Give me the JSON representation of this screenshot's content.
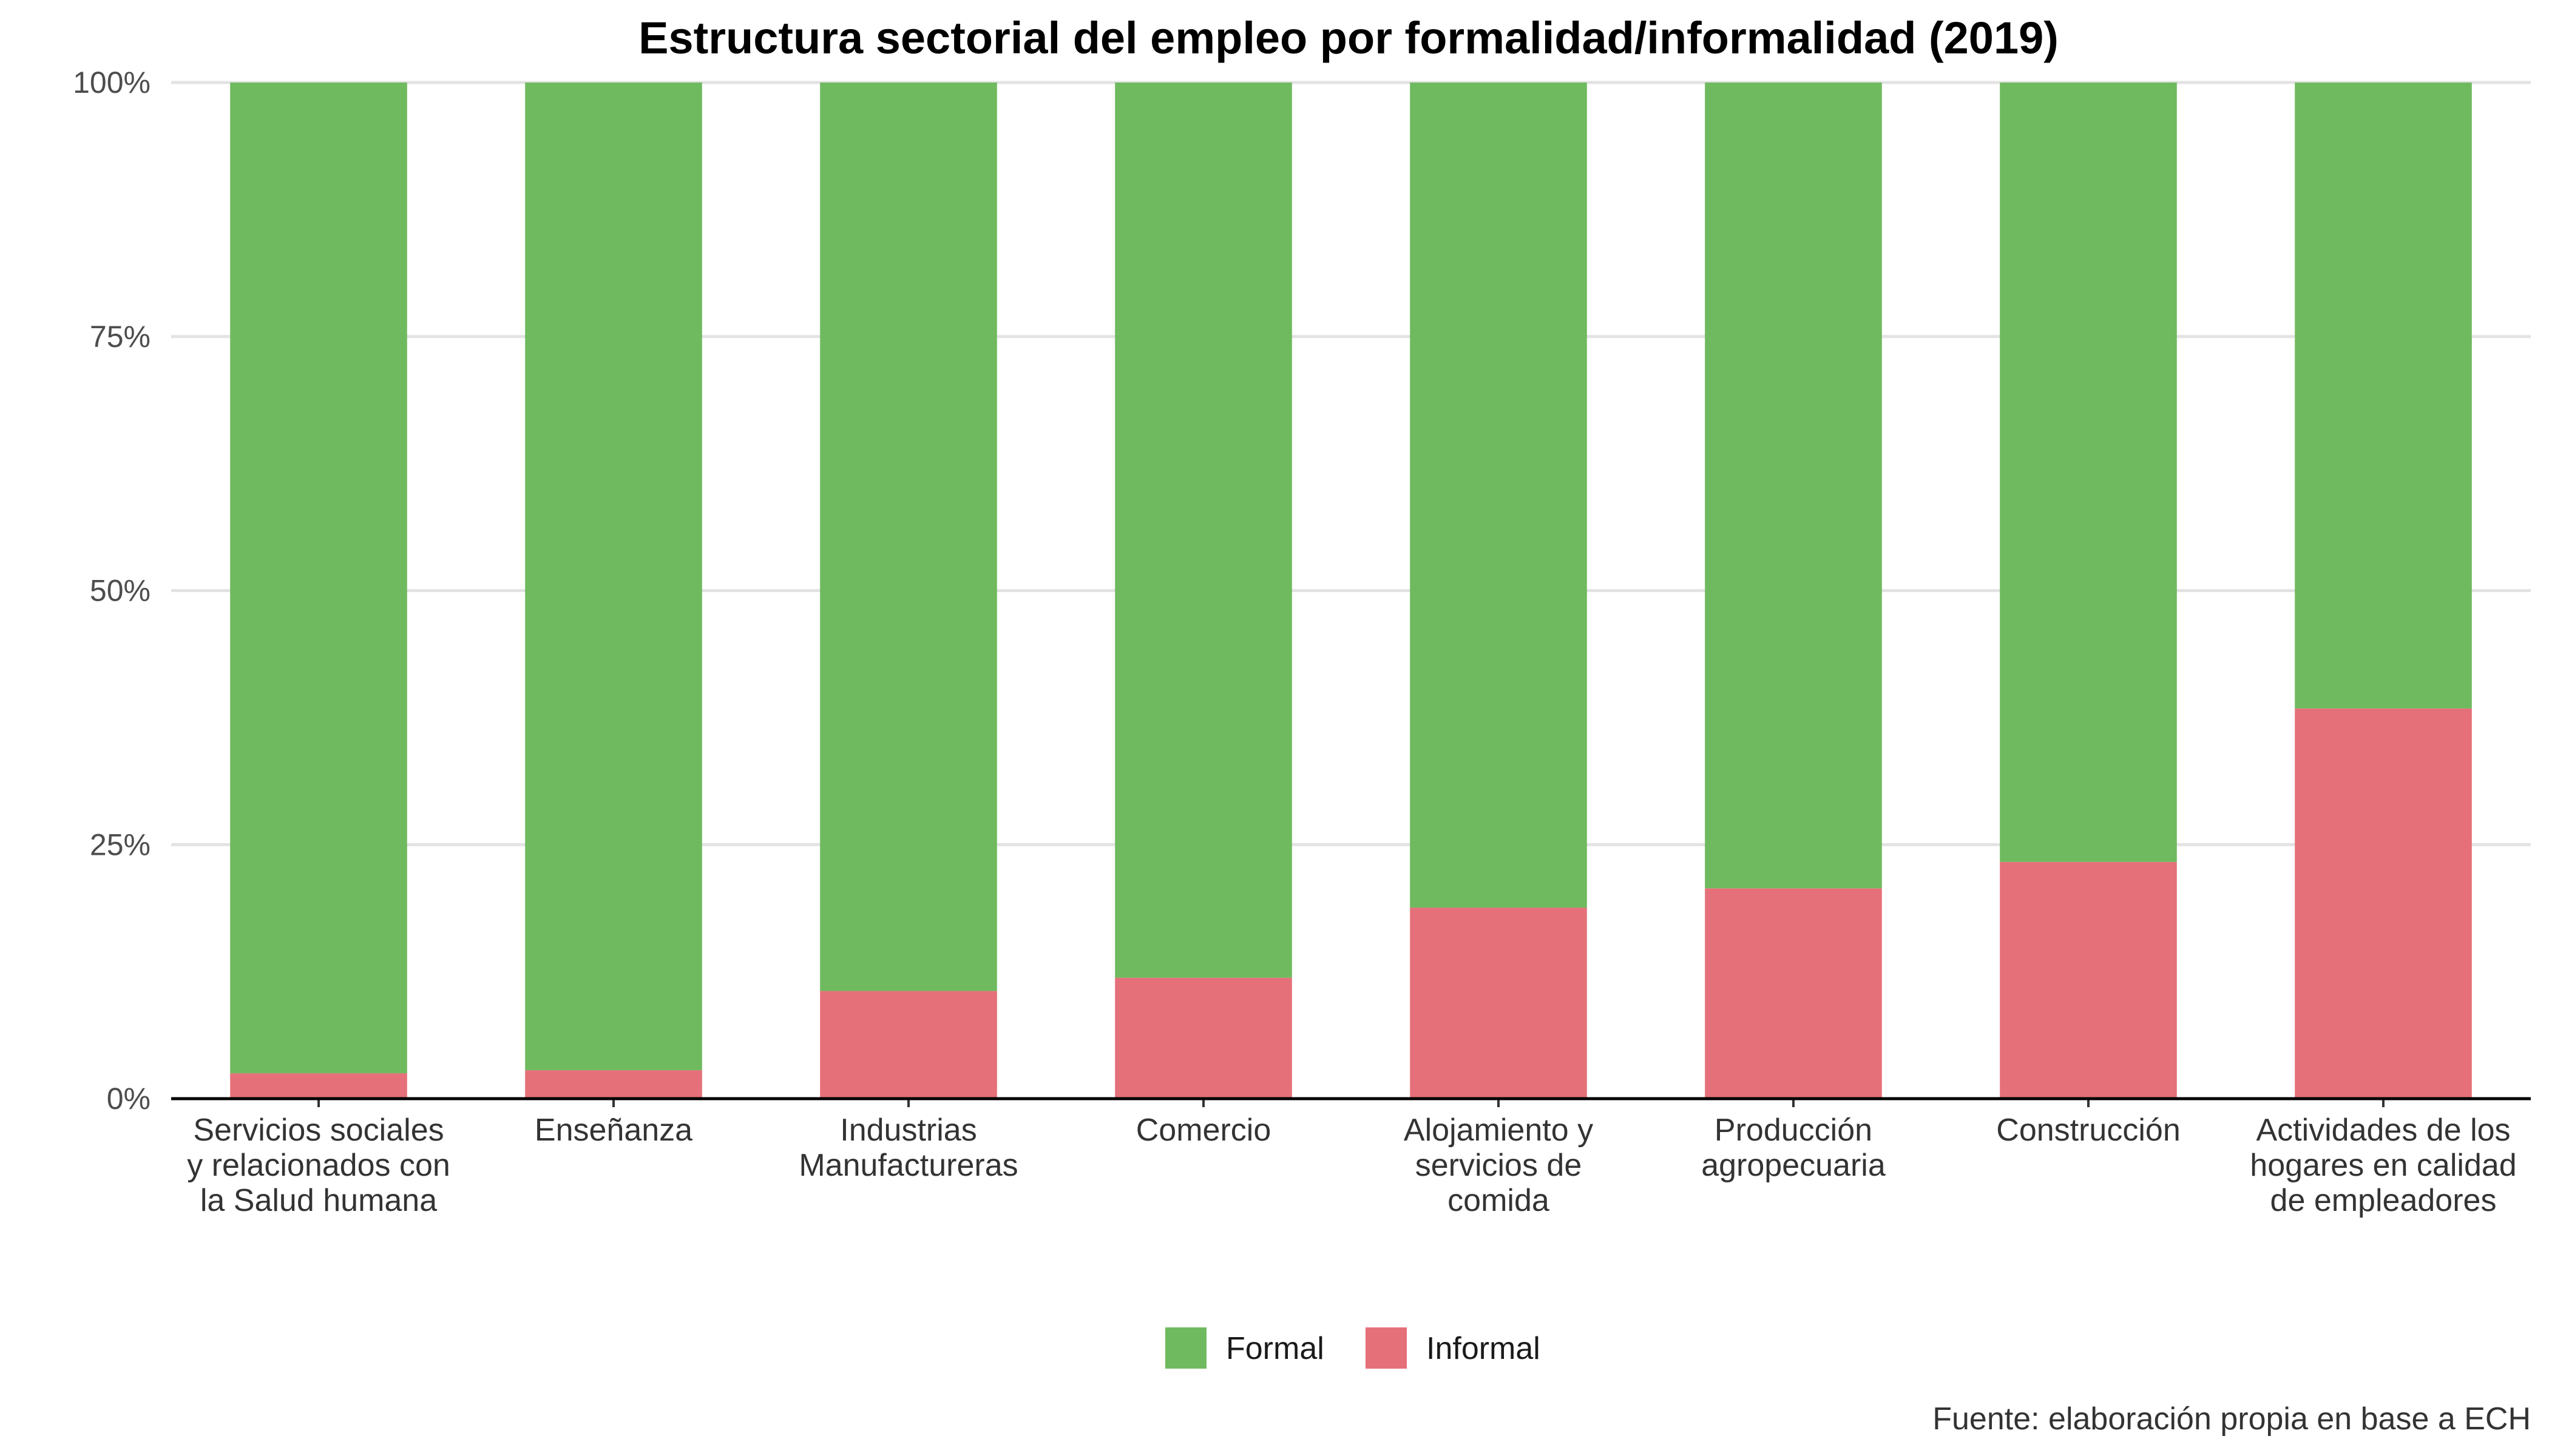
{
  "chart_data": {
    "type": "bar",
    "stacked": true,
    "percent": true,
    "title": "Estructura sectorial del empleo por formalidad/informalidad (2019)",
    "xlabel": "",
    "ylabel": "",
    "ylim": [
      0,
      100
    ],
    "y_ticks": [
      "0%",
      "25%",
      "50%",
      "75%",
      "100%"
    ],
    "categories": [
      [
        "Servicios sociales",
        "y relacionados con",
        "la Salud humana"
      ],
      [
        "Enseñanza"
      ],
      [
        "Industrias",
        "Manufactureras"
      ],
      [
        "Comercio"
      ],
      [
        "Alojamiento y",
        "servicios de",
        "comida"
      ],
      [
        "Producción",
        "agropecuaria"
      ],
      [
        "Construcción"
      ],
      [
        "Actividades de los",
        "hogares en calidad",
        "de empleadores"
      ]
    ],
    "series": [
      {
        "name": "Informal",
        "color": "#e57079",
        "values": [
          2.5,
          2.8,
          10.6,
          11.9,
          18.8,
          20.7,
          23.3,
          38.4
        ]
      },
      {
        "name": "Formal",
        "color": "#6fba5f",
        "values": [
          97.5,
          97.2,
          89.4,
          88.1,
          81.2,
          79.3,
          76.7,
          61.6
        ]
      }
    ],
    "legend": {
      "position": "bottom",
      "items": [
        {
          "label": "Formal",
          "color": "#6fba5f"
        },
        {
          "label": "Informal",
          "color": "#e57079"
        }
      ]
    },
    "grid": true,
    "caption": "Fuente: elaboración propia en base a ECH"
  }
}
